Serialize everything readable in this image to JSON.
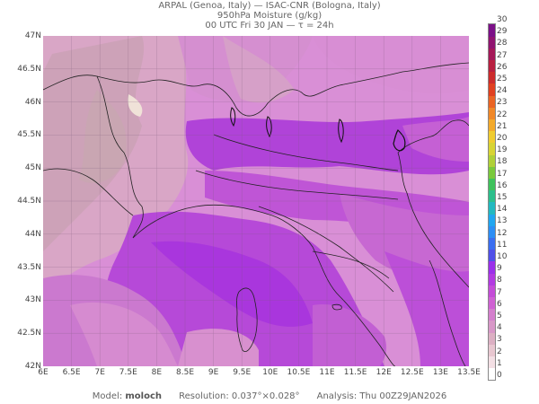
{
  "header": {
    "line1": "ARPAL (Genoa, Italy)  —  ISAC-CNR (Bologna, Italy)",
    "line2": "950hPa Moisture (g/kg)",
    "line3": "00 UTC Fri 30 JAN  —  τ = 24h"
  },
  "axes": {
    "lat_labels": [
      "47N",
      "46.5N",
      "46N",
      "45.5N",
      "45N",
      "44.5N",
      "44N",
      "43.5N",
      "43N",
      "42.5N",
      "42N"
    ],
    "lon_labels": [
      "6E",
      "6.5E",
      "7E",
      "7.5E",
      "8E",
      "8.5E",
      "9E",
      "9.5E",
      "10E",
      "10.5E",
      "11E",
      "11.5E",
      "12E",
      "12.5E",
      "13E",
      "13.5E"
    ]
  },
  "colorbar": {
    "labels": [
      "0",
      "1",
      "2",
      "3",
      "4",
      "5",
      "6",
      "7",
      "8",
      "9",
      "10",
      "11",
      "12",
      "13",
      "14",
      "15",
      "16",
      "17",
      "18",
      "19",
      "20",
      "21",
      "22",
      "23",
      "24",
      "25",
      "26",
      "27",
      "28",
      "29",
      "30"
    ],
    "colors": [
      "#ffffff",
      "#f3dfe4",
      "#e8c7d0",
      "#dcb0c3",
      "#d898c8",
      "#d47fcd",
      "#cf62d3",
      "#c44cd8",
      "#b23ae2",
      "#9b30ea",
      "#5050e8",
      "#3a6ef0",
      "#2c8ef5",
      "#20a6f0",
      "#22b9c0",
      "#2cbf8c",
      "#3fc25c",
      "#7ac93c",
      "#b0d038",
      "#d8d434",
      "#f0cc30",
      "#f3aa2c",
      "#f08828",
      "#ea6424",
      "#e04020",
      "#cc2c2c",
      "#b82040",
      "#a41858",
      "#901470",
      "#7c1088"
    ]
  },
  "footer": {
    "model_label": "Model:",
    "model_value": "moloch",
    "resolution": "Resolution: 0.037°×0.028°",
    "analysis": "Analysis: Thu 00Z29JAN2026"
  }
}
